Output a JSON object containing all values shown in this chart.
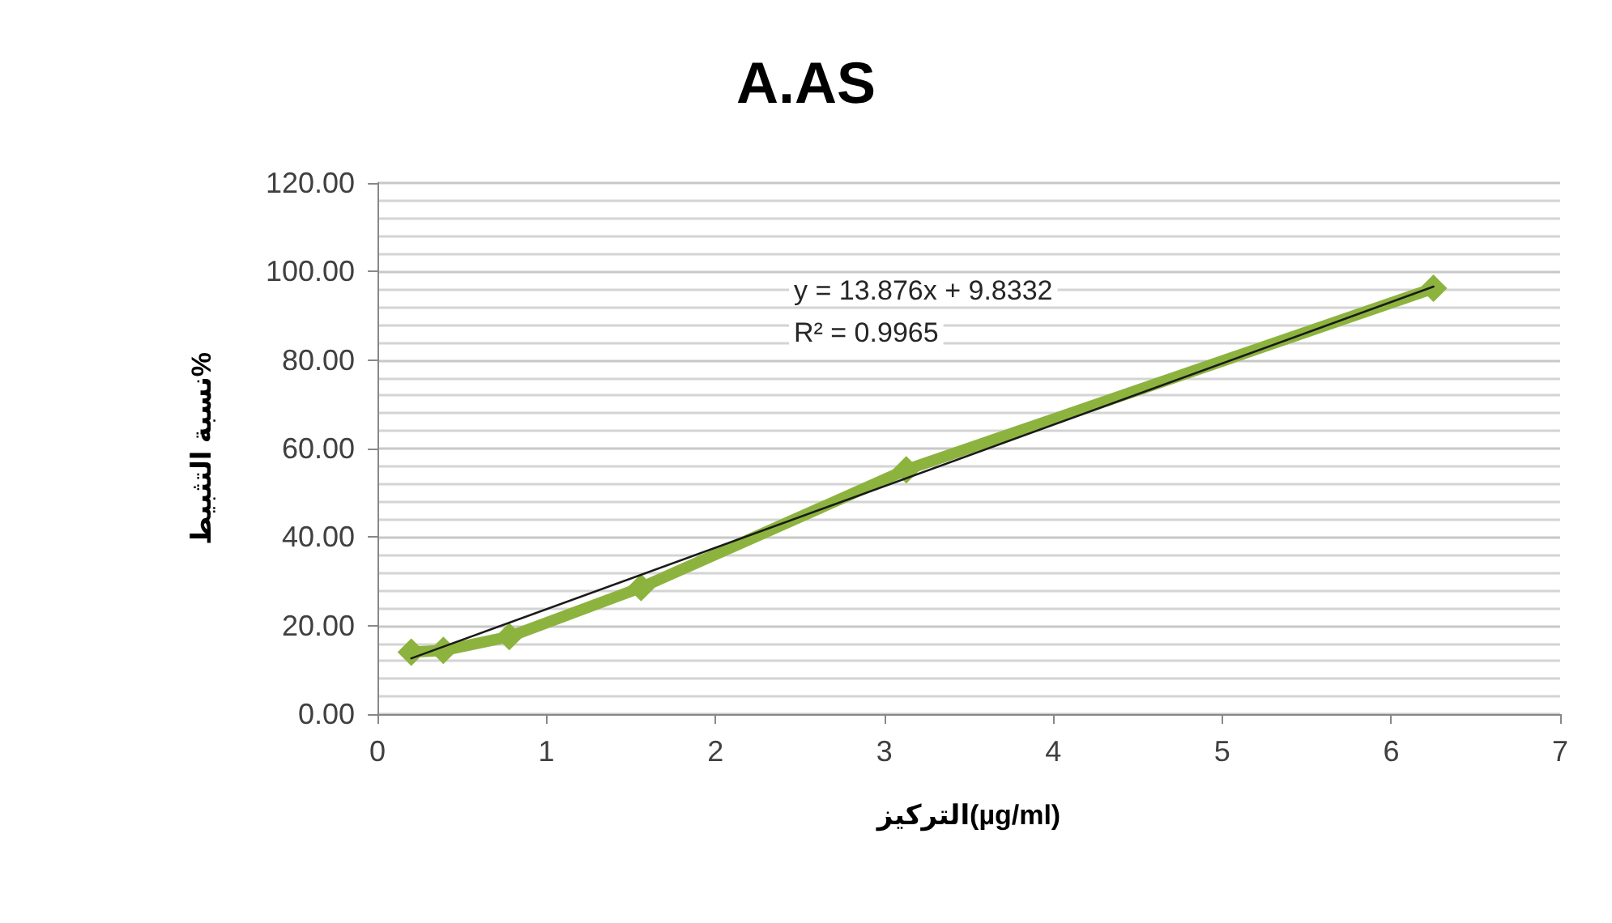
{
  "chart_data": {
    "type": "line",
    "title": "A.AS",
    "xlabel": "التركيز(µg/ml)",
    "ylabel": "نسبة التثبيط%",
    "xlim": [
      0,
      7
    ],
    "xticks": [
      0,
      1,
      2,
      3,
      4,
      5,
      6,
      7
    ],
    "ylim": [
      0,
      120
    ],
    "yticks": [
      {
        "value": 0,
        "label": "0.00"
      },
      {
        "value": 20,
        "label": "20.00"
      },
      {
        "value": 40,
        "label": "40.00"
      },
      {
        "value": 60,
        "label": "60.00"
      },
      {
        "value": 80,
        "label": "80.00"
      },
      {
        "value": 100,
        "label": "100.00"
      },
      {
        "value": 120,
        "label": "120.00"
      }
    ],
    "grid": "y",
    "series": [
      {
        "color": "#8db33f",
        "marker": "diamond",
        "x": [
          0.2,
          0.39,
          0.78,
          1.56,
          3.13,
          6.25
        ],
        "values": [
          14.0,
          14.4,
          17.5,
          28.6,
          55.2,
          96.2
        ]
      },
      {
        "type": "line",
        "color": "#1a1a1a",
        "marker": "none",
        "x": [
          0.2,
          6.25
        ],
        "values": [
          12.6,
          96.6
        ]
      }
    ],
    "annotations": [
      "y = 13.876x + 9.8332",
      "R² = 0.9965"
    ]
  }
}
